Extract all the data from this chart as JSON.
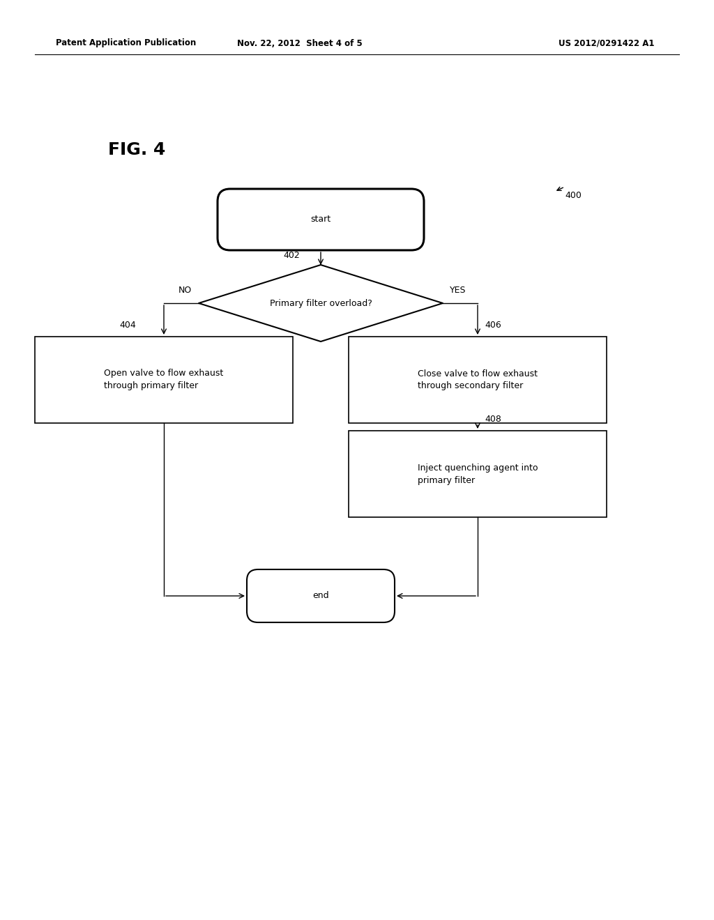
{
  "bg_color": "#ffffff",
  "fig_label": "FIG. 4",
  "fig_number": "400",
  "header_left": "Patent Application Publication",
  "header_mid": "Nov. 22, 2012  Sheet 4 of 5",
  "header_right": "US 2012/0291422 A1",
  "start_text": "start",
  "end_text": "end",
  "diamond_text": "Primary filter overload?",
  "diamond_label": "402",
  "no_label": "NO",
  "yes_label": "YES",
  "box_left_label": "404",
  "box_left_text": "Open valve to flow exhaust\nthrough primary filter",
  "box_right_label": "406",
  "box_right_text": "Close valve to flow exhaust\nthrough secondary filter",
  "box_bottom_label": "408",
  "box_bottom_text": "Inject quenching agent into\nprimary filter",
  "line_color": "#000000",
  "text_color": "#000000",
  "font_size_header": 8.5,
  "font_size_label": 9,
  "font_size_node": 9,
  "font_size_fig": 18
}
